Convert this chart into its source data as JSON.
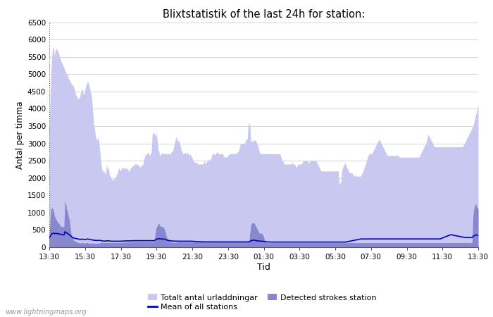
{
  "title": "Blixtstatistik of the last 24h for station:",
  "xlabel": "Tid",
  "ylabel": "Antal per timma",
  "watermark": "www.lightningmaps.org",
  "ylim": [
    0,
    6500
  ],
  "yticks": [
    0,
    500,
    1000,
    1500,
    2000,
    2500,
    3000,
    3500,
    4000,
    4500,
    5000,
    5500,
    6000,
    6500
  ],
  "xtick_labels": [
    "13:30",
    "15:30",
    "17:30",
    "19:30",
    "21:30",
    "23:30",
    "01:30",
    "03:30",
    "05:30",
    "07:30",
    "09:30",
    "11:30",
    "13:30"
  ],
  "color_total": "#c8c8f0",
  "color_detected": "#8888cc",
  "color_mean": "#0000cc",
  "legend_labels": [
    "Totalt antal urladdningar",
    "Detected strokes station",
    "Mean of all stations"
  ],
  "total_urladdningar": [
    3500,
    4250,
    5050,
    5500,
    5750,
    5800,
    5500,
    5700,
    5750,
    5700,
    5650,
    5600,
    5500,
    5400,
    5350,
    5300,
    5250,
    5200,
    5100,
    5100,
    5000,
    5000,
    4900,
    4850,
    4800,
    4750,
    4700,
    4700,
    4650,
    4600,
    4500,
    4400,
    4350,
    4300,
    4300,
    4300,
    4400,
    4500,
    4600,
    4500,
    4400,
    4450,
    4600,
    4700,
    4750,
    4800,
    4700,
    4600,
    4500,
    4400,
    4200,
    3800,
    3500,
    3400,
    3200,
    3100,
    3100,
    3200,
    3000,
    2800,
    2500,
    2300,
    2200,
    2200,
    2200,
    2100,
    2200,
    2400,
    2250,
    2300,
    2100,
    2050,
    2000,
    1950,
    1950,
    1950,
    2000,
    1950,
    2100,
    2100,
    2200,
    2300,
    2250,
    2200,
    2250,
    2300,
    2300,
    2250,
    2300,
    2300,
    2250,
    2300,
    2200,
    2200,
    2250,
    2300,
    2300,
    2350,
    2350,
    2400,
    2400,
    2400,
    2400,
    2400,
    2350,
    2350,
    2300,
    2350,
    2400,
    2350,
    2500,
    2600,
    2700,
    2650,
    2700,
    2750,
    2700,
    2650,
    2700,
    2750,
    3250,
    3300,
    3300,
    3250,
    3200,
    3300,
    3050,
    2800,
    2750,
    2650,
    2650,
    2750,
    2700,
    2700,
    2700,
    2700,
    2700,
    2700,
    2700,
    2700,
    2700,
    2700,
    2750,
    2750,
    2800,
    2900,
    3000,
    3100,
    3200,
    3100,
    3050,
    3100,
    3000,
    2900,
    2800,
    2750,
    2700,
    2700,
    2750,
    2700,
    2700,
    2750,
    2700,
    2650,
    2700,
    2650,
    2600,
    2550,
    2500,
    2450,
    2450,
    2450,
    2450,
    2400,
    2400,
    2400,
    2400,
    2400,
    2400,
    2400,
    2450,
    2500,
    2400,
    2450,
    2500,
    2500,
    2550,
    2500,
    2550,
    2600,
    2700,
    2700,
    2700,
    2650,
    2700,
    2750,
    2750,
    2700,
    2700,
    2700,
    2700,
    2700,
    2700,
    2650,
    2600,
    2600,
    2600,
    2600,
    2650,
    2650,
    2700,
    2700,
    2700,
    2700,
    2700,
    2700,
    2700,
    2700,
    2700,
    2750,
    2750,
    2800,
    2900,
    3000,
    3000,
    3000,
    3000,
    3000,
    3000,
    3100,
    3100,
    3150,
    3600,
    3550,
    3500,
    3050,
    3050,
    3100,
    3050,
    3100,
    3100,
    3050,
    3000,
    2950,
    2850,
    2750,
    2700,
    2700,
    2700,
    2700,
    2700,
    2700,
    2700,
    2700,
    2700,
    2700,
    2700,
    2700,
    2700,
    2700,
    2700,
    2700,
    2700,
    2700,
    2700,
    2700,
    2700,
    2700,
    2700,
    2700,
    2600,
    2550,
    2500,
    2450,
    2400,
    2400,
    2400,
    2400,
    2400,
    2400,
    2400,
    2400,
    2400,
    2450,
    2400,
    2400,
    2400,
    2350,
    2300,
    2350,
    2400,
    2400,
    2400,
    2400,
    2400,
    2450,
    2500,
    2500,
    2500,
    2500,
    2500,
    2500,
    2450,
    2450,
    2500,
    2500,
    2500,
    2500,
    2500,
    2500,
    2500,
    2500,
    2450,
    2400,
    2350,
    2300,
    2250,
    2200,
    2200,
    2200,
    2200,
    2200,
    2200,
    2200,
    2200,
    2200,
    2200,
    2200,
    2200,
    2200,
    2200,
    2200,
    2200,
    2200,
    2200,
    2200,
    2200,
    2200,
    1800,
    1850,
    1900,
    2200,
    2300,
    2350,
    2400,
    2450,
    2350,
    2300,
    2250,
    2200,
    2150,
    2150,
    2150,
    2150,
    2100,
    2050,
    2050,
    2100,
    2050,
    2050,
    2050,
    2050,
    2050,
    2050,
    2100,
    2150,
    2200,
    2300,
    2350,
    2450,
    2500,
    2600,
    2650,
    2700,
    2700,
    2700,
    2700,
    2750,
    2800,
    2850,
    2900,
    2950,
    3000,
    3050,
    3100,
    3100,
    3050,
    3000,
    2950,
    2900,
    2850,
    2800,
    2750,
    2700,
    2650,
    2650,
    2650,
    2650,
    2650,
    2650,
    2650,
    2650,
    2650,
    2650,
    2650,
    2650,
    2650,
    2650,
    2600,
    2600,
    2600,
    2600,
    2600,
    2600,
    2600,
    2600,
    2600,
    2600,
    2600,
    2600,
    2600,
    2600,
    2600,
    2600,
    2600,
    2600,
    2600,
    2600,
    2600,
    2600,
    2600,
    2600,
    2650,
    2700,
    2750,
    2800,
    2850,
    2900,
    2950,
    3000,
    3100,
    3200,
    3250,
    3200,
    3150,
    3100,
    3050,
    3000,
    2950,
    2900,
    2900,
    2900,
    2900,
    2900,
    2900,
    2900,
    2900,
    2900,
    2900,
    2900,
    2900,
    2900,
    2900,
    2900,
    2900,
    2900,
    2900,
    2900,
    2900,
    2900,
    2900,
    2900,
    2900,
    2900,
    2900,
    2900,
    2900,
    2900,
    2900,
    2900,
    2900,
    2900,
    2900,
    2950,
    3000,
    3050,
    3100,
    3150,
    3200,
    3250,
    3300,
    3350,
    3400,
    3450,
    3500,
    3600,
    3700,
    3800,
    3900,
    4000,
    4100
  ],
  "detected_strokes": [
    300,
    800,
    1100,
    1150,
    1100,
    1050,
    900,
    850,
    800,
    750,
    700,
    700,
    650,
    600,
    600,
    600,
    600,
    600,
    1350,
    1250,
    1100,
    1050,
    900,
    800,
    600,
    400,
    300,
    250,
    200,
    180,
    170,
    160,
    150,
    140,
    130,
    120,
    120,
    130,
    140,
    130,
    120,
    120,
    130,
    140,
    130,
    120,
    110,
    120,
    120,
    120,
    120,
    120,
    110,
    110,
    110,
    110,
    110,
    120,
    120,
    130,
    140,
    140,
    130,
    130,
    130,
    130,
    140,
    140,
    130,
    130,
    130,
    130,
    130,
    130,
    130,
    130,
    130,
    130,
    130,
    130,
    130,
    130,
    130,
    130,
    140,
    140,
    140,
    140,
    150,
    150,
    150,
    150,
    150,
    150,
    150,
    150,
    160,
    160,
    160,
    160,
    160,
    160,
    160,
    160,
    160,
    160,
    160,
    160,
    160,
    160,
    160,
    160,
    160,
    160,
    160,
    160,
    160,
    160,
    160,
    160,
    160,
    160,
    400,
    550,
    600,
    650,
    700,
    650,
    600,
    600,
    600,
    600,
    550,
    500,
    400,
    300,
    250,
    200,
    180,
    160,
    150,
    140,
    140,
    140,
    140,
    140,
    140,
    140,
    150,
    150,
    150,
    150,
    150,
    150,
    150,
    150,
    150,
    150,
    150,
    150,
    150,
    150,
    150,
    150,
    150,
    150,
    150,
    150,
    150,
    150,
    150,
    150,
    150,
    150,
    150,
    150,
    150,
    150,
    150,
    150,
    150,
    150,
    150,
    150,
    150,
    150,
    150,
    150,
    150,
    150,
    150,
    150,
    150,
    150,
    150,
    150,
    150,
    150,
    150,
    150,
    150,
    150,
    150,
    150,
    150,
    150,
    150,
    150,
    150,
    150,
    150,
    150,
    150,
    150,
    150,
    150,
    150,
    150,
    150,
    150,
    150,
    150,
    150,
    150,
    150,
    150,
    150,
    150,
    150,
    150,
    150,
    400,
    600,
    700,
    700,
    700,
    700,
    650,
    600,
    550,
    500,
    450,
    400,
    400,
    400,
    400,
    350,
    300,
    200,
    150,
    140,
    130,
    130,
    130,
    130,
    130,
    130,
    130,
    130,
    130,
    130,
    130,
    130,
    130,
    130,
    130,
    130,
    130,
    130,
    130,
    130,
    130,
    130,
    130,
    130,
    130,
    130,
    130,
    130,
    130,
    130,
    130,
    130,
    130,
    130,
    130,
    130,
    130,
    130,
    130,
    130,
    130,
    130,
    130,
    130,
    130,
    130,
    130,
    130,
    130,
    130,
    130,
    130,
    130,
    130,
    130,
    130,
    130,
    130,
    130,
    130,
    130,
    130,
    130,
    130,
    130,
    130,
    130,
    130,
    130,
    130,
    130,
    130,
    130,
    130,
    130,
    130,
    130,
    130,
    130,
    130,
    130,
    130,
    130,
    130,
    130,
    130,
    130,
    130,
    130,
    130,
    130,
    130,
    130,
    130,
    130,
    130,
    130,
    130,
    130,
    130,
    130,
    130,
    130,
    130,
    130,
    130,
    130,
    130,
    130,
    130,
    130,
    130,
    130,
    130,
    130,
    130,
    130,
    130,
    130,
    130,
    130,
    130,
    130,
    130,
    130,
    130,
    130,
    130,
    130,
    130,
    130,
    130,
    130,
    130,
    130,
    130,
    130,
    130,
    130,
    130,
    130,
    130,
    130,
    130,
    130,
    130,
    130,
    130,
    130,
    130,
    130,
    130,
    130,
    130,
    130,
    130,
    130,
    130,
    130,
    130,
    130,
    130,
    130,
    130,
    130,
    130,
    130,
    130,
    130,
    130,
    130,
    130,
    130,
    130,
    130,
    130,
    130,
    130,
    130,
    130,
    130,
    130,
    130,
    130,
    130,
    130,
    130,
    130,
    130,
    130,
    130,
    130,
    130,
    130,
    130,
    130,
    130,
    130,
    130,
    130,
    130,
    130,
    130,
    130,
    130,
    130,
    130,
    130,
    130,
    130,
    130,
    130,
    130,
    130,
    130,
    130,
    130,
    130,
    130,
    130,
    130,
    130,
    130,
    130,
    130,
    130,
    130,
    130,
    130,
    130,
    130,
    130,
    130,
    130,
    130,
    130,
    130,
    900,
    1100,
    1200,
    1250,
    1200,
    1150,
    1100
  ],
  "mean_all_stations": [
    280,
    310,
    360,
    390,
    400,
    410,
    390,
    400,
    400,
    395,
    390,
    385,
    380,
    375,
    370,
    365,
    360,
    355,
    450,
    430,
    410,
    400,
    380,
    360,
    340,
    320,
    300,
    280,
    270,
    260,
    255,
    250,
    245,
    240,
    235,
    230,
    230,
    230,
    235,
    230,
    225,
    225,
    230,
    235,
    235,
    235,
    230,
    225,
    220,
    215,
    210,
    205,
    200,
    200,
    200,
    195,
    195,
    200,
    200,
    195,
    190,
    185,
    180,
    180,
    180,
    180,
    185,
    190,
    185,
    185,
    180,
    175,
    175,
    175,
    175,
    175,
    175,
    175,
    175,
    175,
    175,
    175,
    175,
    175,
    180,
    180,
    180,
    180,
    185,
    185,
    185,
    185,
    185,
    185,
    185,
    185,
    190,
    190,
    190,
    190,
    190,
    190,
    190,
    190,
    190,
    190,
    190,
    190,
    190,
    190,
    190,
    190,
    190,
    190,
    190,
    190,
    190,
    190,
    190,
    190,
    190,
    190,
    210,
    230,
    240,
    245,
    250,
    245,
    240,
    240,
    240,
    240,
    235,
    230,
    220,
    210,
    205,
    200,
    195,
    190,
    185,
    180,
    180,
    180,
    180,
    178,
    176,
    175,
    175,
    175,
    175,
    175,
    175,
    175,
    175,
    175,
    175,
    175,
    175,
    175,
    175,
    175,
    175,
    175,
    175,
    175,
    170,
    168,
    165,
    163,
    162,
    160,
    160,
    160,
    160,
    160,
    158,
    156,
    155,
    155,
    155,
    155,
    155,
    155,
    155,
    155,
    155,
    155,
    155,
    155,
    155,
    155,
    155,
    155,
    155,
    155,
    155,
    155,
    155,
    155,
    155,
    155,
    155,
    155,
    155,
    155,
    155,
    155,
    155,
    155,
    155,
    155,
    155,
    155,
    155,
    155,
    155,
    155,
    155,
    155,
    155,
    155,
    155,
    155,
    155,
    155,
    155,
    155,
    155,
    155,
    155,
    170,
    185,
    195,
    200,
    205,
    205,
    200,
    195,
    190,
    185,
    180,
    178,
    178,
    177,
    175,
    173,
    170,
    165,
    160,
    158,
    155,
    153,
    152,
    150,
    150,
    150,
    150,
    150,
    150,
    150,
    150,
    150,
    150,
    150,
    150,
    150,
    150,
    150,
    150,
    150,
    150,
    150,
    150,
    150,
    150,
    150,
    150,
    150,
    150,
    150,
    150,
    150,
    150,
    150,
    150,
    150,
    150,
    150,
    150,
    150,
    150,
    150,
    150,
    150,
    150,
    150,
    150,
    150,
    150,
    150,
    150,
    150,
    150,
    150,
    150,
    150,
    150,
    150,
    150,
    150,
    150,
    150,
    150,
    150,
    150,
    150,
    150,
    150,
    150,
    150,
    150,
    150,
    150,
    150,
    150,
    150,
    150,
    150,
    150,
    150,
    150,
    150,
    150,
    150,
    150,
    150,
    150,
    150,
    150,
    150,
    150,
    155,
    160,
    165,
    170,
    175,
    180,
    185,
    190,
    195,
    200,
    205,
    210,
    215,
    220,
    225,
    230,
    235,
    240,
    240,
    240,
    240,
    240,
    240,
    240,
    240,
    240,
    240,
    240,
    240,
    240,
    240,
    240,
    240,
    240,
    240,
    240,
    240,
    240,
    240,
    240,
    240,
    240,
    240,
    240,
    240,
    240,
    240,
    240,
    240,
    240,
    240,
    240,
    240,
    240,
    240,
    240,
    240,
    240,
    240,
    240,
    240,
    240,
    240,
    240,
    240,
    240,
    240,
    240,
    240,
    240,
    240,
    240,
    240,
    240,
    240,
    240,
    240,
    240,
    240,
    240,
    240,
    240,
    240,
    240,
    240,
    240,
    240,
    240,
    240,
    240,
    240,
    240,
    240,
    240,
    240,
    240,
    240,
    240,
    240,
    240,
    240,
    240,
    240,
    240,
    240,
    240,
    240,
    240,
    240,
    250,
    260,
    270,
    280,
    290,
    300,
    310,
    320,
    330,
    340,
    350,
    360,
    360,
    355,
    350,
    345,
    340,
    335,
    330,
    325,
    320,
    315,
    310,
    305,
    300,
    295,
    290,
    285,
    280,
    280,
    280,
    280,
    280,
    280,
    280,
    280,
    280,
    310,
    330,
    340,
    350,
    355,
    350,
    340
  ]
}
